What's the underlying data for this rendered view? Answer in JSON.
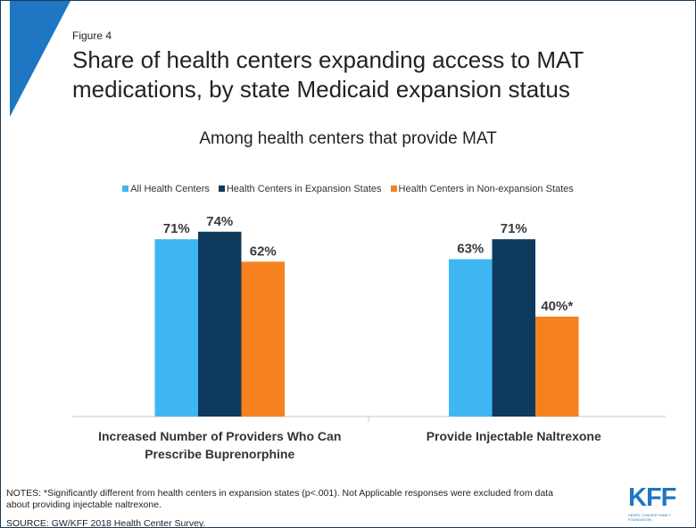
{
  "figure_label": "Figure 4",
  "chart_data": {
    "type": "bar",
    "title": "Share of health centers expanding access to MAT medications, by state Medicaid expansion status",
    "subtitle": "Among health centers that provide MAT",
    "categories": [
      "Increased Number of Providers Who Can Prescribe Buprenorphine",
      "Provide Injectable Naltrexone"
    ],
    "series": [
      {
        "name": "All Health Centers",
        "color": "#3fb6f2",
        "values": [
          71,
          63
        ],
        "value_labels": [
          "71%",
          "63%"
        ]
      },
      {
        "name": "Health Centers in Expansion States",
        "color": "#0e3a5d",
        "values": [
          74,
          71
        ],
        "value_labels": [
          "74%",
          "71%"
        ]
      },
      {
        "name": "Health Centers in Non-expansion States",
        "color": "#f5821f",
        "values": [
          62,
          40
        ],
        "value_labels": [
          "62%",
          "40%*"
        ]
      }
    ],
    "ylim": [
      0,
      100
    ],
    "legend": "top"
  },
  "notes": "NOTES: *Significantly different from health centers in expansion states (p<.001). Not Applicable responses were excluded from data about providing injectable naltrexone.",
  "source": "SOURCE: GW/KFF 2018 Health Center Survey.",
  "logo": {
    "mark": "KFF",
    "name": "HENRY J KAISER FAMILY FOUNDATION"
  }
}
